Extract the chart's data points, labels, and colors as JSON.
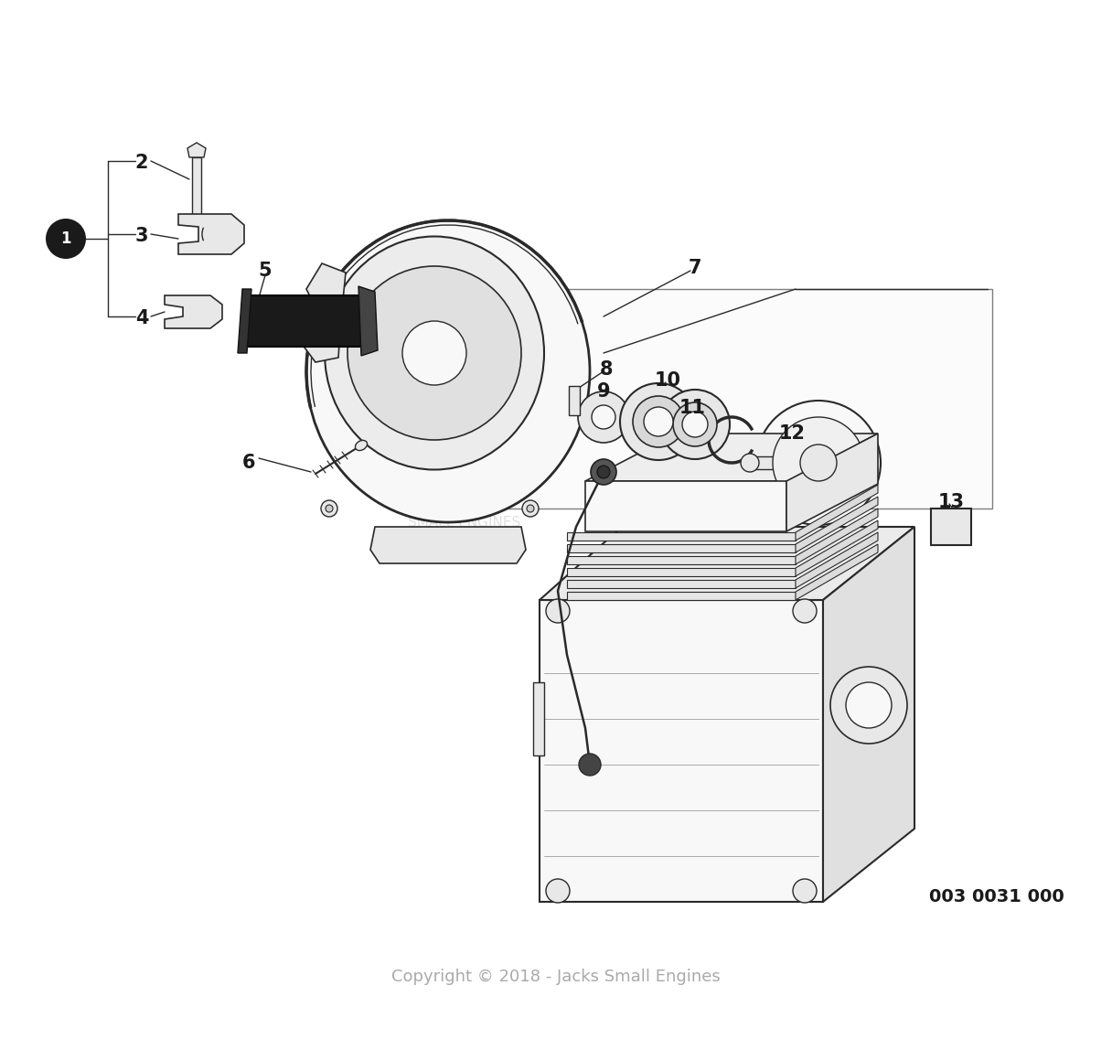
{
  "background_color": "#ffffff",
  "part_number_code": "003 0031 000",
  "copyright_text": "Copyright © 2018 - Jacks Small Engines",
  "line_color": "#2a2a2a",
  "label_color": "#1a1a1a",
  "part_fill": "#f8f8f8",
  "part_fill_dark": "#e8e8e8",
  "part_fill_black": "#1a1a1a"
}
